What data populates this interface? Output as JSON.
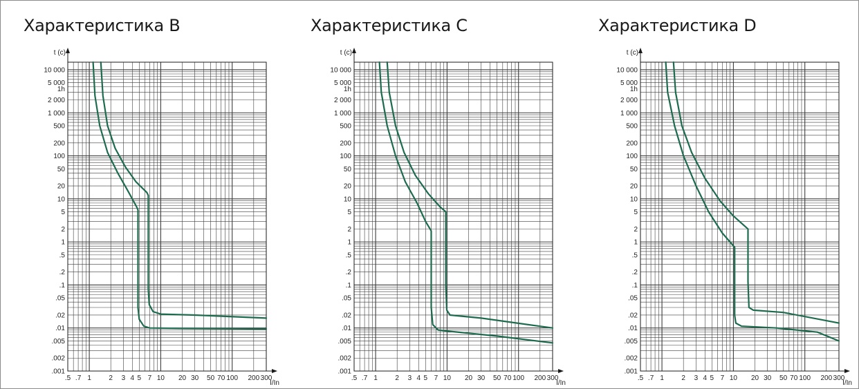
{
  "chart_data": [
    {
      "type": "line",
      "title": "Характеристика B",
      "ylabel": "t (c)",
      "xlabel": "I/In",
      "xscale": "log",
      "yscale": "log",
      "xlim": [
        0.5,
        300
      ],
      "ylim": [
        0.001,
        15000
      ],
      "grid": true,
      "yticks": [
        {
          "label": "10 000",
          "v": 10000
        },
        {
          "label": "5 000",
          "v": 5000
        },
        {
          "label": "1h",
          "v": 3600
        },
        {
          "label": "2 000",
          "v": 2000
        },
        {
          "label": "1 000",
          "v": 1000
        },
        {
          "label": "500",
          "v": 500
        },
        {
          "label": "200",
          "v": 200
        },
        {
          "label": "100",
          "v": 100
        },
        {
          "label": "50",
          "v": 50
        },
        {
          "label": "20",
          "v": 20
        },
        {
          "label": "10",
          "v": 10
        },
        {
          "label": "5",
          "v": 5
        },
        {
          "label": "2",
          "v": 2
        },
        {
          "label": "1",
          "v": 1
        },
        {
          "label": ".5",
          "v": 0.5
        },
        {
          "label": ".2",
          "v": 0.2
        },
        {
          "label": ".1",
          "v": 0.1
        },
        {
          "label": ".05",
          "v": 0.05
        },
        {
          "label": ".02",
          "v": 0.02
        },
        {
          "label": ".01",
          "v": 0.01
        },
        {
          "label": ".005",
          "v": 0.005
        },
        {
          "label": ".002",
          "v": 0.002
        },
        {
          "label": ".001",
          "v": 0.001
        }
      ],
      "xticks": [
        {
          "label": ".5",
          "v": 0.5
        },
        {
          "label": ".7",
          "v": 0.7
        },
        {
          "label": "1",
          "v": 1
        },
        {
          "label": "2",
          "v": 2
        },
        {
          "label": "3",
          "v": 3
        },
        {
          "label": "4",
          "v": 4
        },
        {
          "label": "5",
          "v": 5
        },
        {
          "label": "7",
          "v": 7
        },
        {
          "label": "10",
          "v": 10
        },
        {
          "label": "20",
          "v": 20
        },
        {
          "label": "30",
          "v": 30
        },
        {
          "label": "50",
          "v": 50
        },
        {
          "label": "70",
          "v": 70
        },
        {
          "label": "100",
          "v": 100
        },
        {
          "label": "200",
          "v": 200
        },
        {
          "label": "300",
          "v": 300
        }
      ],
      "series": [
        {
          "values": [
            [
              1.13,
              15000
            ],
            [
              1.2,
              2500
            ],
            [
              1.4,
              500
            ],
            [
              1.8,
              120
            ],
            [
              2.5,
              40
            ],
            [
              3.5,
              15
            ],
            [
              4.6,
              6.5
            ],
            [
              4.8,
              5.5
            ],
            [
              4.8,
              0.03
            ],
            [
              5.0,
              0.016
            ],
            [
              5.8,
              0.011
            ],
            [
              7,
              0.01
            ],
            [
              20,
              0.0098
            ],
            [
              300,
              0.0095
            ]
          ]
        },
        {
          "values": [
            [
              1.45,
              15000
            ],
            [
              1.55,
              2500
            ],
            [
              1.8,
              500
            ],
            [
              2.3,
              150
            ],
            [
              3.2,
              55
            ],
            [
              4.5,
              25
            ],
            [
              6.4,
              14
            ],
            [
              6.7,
              12
            ],
            [
              6.7,
              0.08
            ],
            [
              6.9,
              0.035
            ],
            [
              7.8,
              0.024
            ],
            [
              10,
              0.021
            ],
            [
              30,
              0.02
            ],
            [
              300,
              0.017
            ]
          ]
        }
      ]
    },
    {
      "type": "line",
      "title": "Характеристика C",
      "ylabel": "t (c)",
      "xlabel": "I/In",
      "xscale": "log",
      "yscale": "log",
      "xlim": [
        0.5,
        300
      ],
      "ylim": [
        0.001,
        15000
      ],
      "grid": true,
      "yticks": [
        {
          "label": "10 000",
          "v": 10000
        },
        {
          "label": "5 000",
          "v": 5000
        },
        {
          "label": "1h",
          "v": 3600
        },
        {
          "label": "2 000",
          "v": 2000
        },
        {
          "label": "1 000",
          "v": 1000
        },
        {
          "label": "500",
          "v": 500
        },
        {
          "label": "200",
          "v": 200
        },
        {
          "label": "100",
          "v": 100
        },
        {
          "label": "50",
          "v": 50
        },
        {
          "label": "20",
          "v": 20
        },
        {
          "label": "10",
          "v": 10
        },
        {
          "label": "5",
          "v": 5
        },
        {
          "label": "2",
          "v": 2
        },
        {
          "label": "1",
          "v": 1
        },
        {
          "label": ".5",
          "v": 0.5
        },
        {
          "label": ".2",
          "v": 0.2
        },
        {
          "label": ".1",
          "v": 0.1
        },
        {
          "label": ".05",
          "v": 0.05
        },
        {
          "label": ".02",
          "v": 0.02
        },
        {
          "label": ".01",
          "v": 0.01
        },
        {
          "label": ".005",
          "v": 0.005
        },
        {
          "label": ".002",
          "v": 0.002
        },
        {
          "label": ".001",
          "v": 0.001
        }
      ],
      "xticks": [
        {
          "label": ".5",
          "v": 0.5
        },
        {
          "label": ".7",
          "v": 0.7
        },
        {
          "label": "1",
          "v": 1
        },
        {
          "label": "2",
          "v": 2
        },
        {
          "label": "3",
          "v": 3
        },
        {
          "label": "4",
          "v": 4
        },
        {
          "label": "5",
          "v": 5
        },
        {
          "label": "7",
          "v": 7
        },
        {
          "label": "10",
          "v": 10
        },
        {
          "label": "20",
          "v": 20
        },
        {
          "label": "30",
          "v": 30
        },
        {
          "label": "50",
          "v": 50
        },
        {
          "label": "70",
          "v": 70
        },
        {
          "label": "100",
          "v": 100
        },
        {
          "label": "200",
          "v": 200
        },
        {
          "label": "300",
          "v": 300
        }
      ],
      "series": [
        {
          "values": [
            [
              1.13,
              15000
            ],
            [
              1.2,
              3000
            ],
            [
              1.45,
              500
            ],
            [
              1.9,
              100
            ],
            [
              2.6,
              25
            ],
            [
              3.8,
              8
            ],
            [
              5.0,
              3
            ],
            [
              6.0,
              1.8
            ],
            [
              6.0,
              0.03
            ],
            [
              6.3,
              0.012
            ],
            [
              7.5,
              0.009
            ],
            [
              10,
              0.0085
            ],
            [
              50,
              0.0065
            ],
            [
              300,
              0.0045
            ]
          ]
        },
        {
          "values": [
            [
              1.45,
              15000
            ],
            [
              1.55,
              3000
            ],
            [
              1.9,
              500
            ],
            [
              2.5,
              120
            ],
            [
              3.6,
              35
            ],
            [
              5.5,
              13
            ],
            [
              8.0,
              6.5
            ],
            [
              9.6,
              5
            ],
            [
              9.6,
              0.1
            ],
            [
              9.9,
              0.026
            ],
            [
              11,
              0.02
            ],
            [
              30,
              0.017
            ],
            [
              300,
              0.01
            ]
          ]
        }
      ]
    },
    {
      "type": "line",
      "title": "Характеристика D",
      "ylabel": "t (c)",
      "xlabel": "I/In",
      "xscale": "log",
      "yscale": "log",
      "xlim": [
        0.5,
        300
      ],
      "ylim": [
        0.001,
        15000
      ],
      "grid": true,
      "yticks": [
        {
          "label": "10 000",
          "v": 10000
        },
        {
          "label": "5 000",
          "v": 5000
        },
        {
          "label": "1h",
          "v": 3600
        },
        {
          "label": "2 000",
          "v": 2000
        },
        {
          "label": "1 000",
          "v": 1000
        },
        {
          "label": "500",
          "v": 500
        },
        {
          "label": "200",
          "v": 200
        },
        {
          "label": "100",
          "v": 100
        },
        {
          "label": "50",
          "v": 50
        },
        {
          "label": "20",
          "v": 20
        },
        {
          "label": "10",
          "v": 10
        },
        {
          "label": "5",
          "v": 5
        },
        {
          "label": "2",
          "v": 2
        },
        {
          "label": "1",
          "v": 1
        },
        {
          "label": ".5",
          "v": 0.5
        },
        {
          "label": ".2",
          "v": 0.2
        },
        {
          "label": ".1",
          "v": 0.1
        },
        {
          "label": ".05",
          "v": 0.05
        },
        {
          "label": ".02",
          "v": 0.02
        },
        {
          "label": ".01",
          "v": 0.01
        },
        {
          "label": ".005",
          "v": 0.005
        },
        {
          "label": ".002",
          "v": 0.002
        },
        {
          "label": ".001",
          "v": 0.001
        }
      ],
      "xticks": [
        {
          "label": ".5",
          "v": 0.5
        },
        {
          "label": ".7",
          "v": 0.7
        },
        {
          "label": "1",
          "v": 1
        },
        {
          "label": "2",
          "v": 2
        },
        {
          "label": "3",
          "v": 3
        },
        {
          "label": "4",
          "v": 4
        },
        {
          "label": "5",
          "v": 5
        },
        {
          "label": "7",
          "v": 7
        },
        {
          "label": "10",
          "v": 10
        },
        {
          "label": "20",
          "v": 20
        },
        {
          "label": "30",
          "v": 30
        },
        {
          "label": "50",
          "v": 50
        },
        {
          "label": "70",
          "v": 70
        },
        {
          "label": "100",
          "v": 100
        },
        {
          "label": "200",
          "v": 200
        },
        {
          "label": "300",
          "v": 300
        }
      ],
      "series": [
        {
          "values": [
            [
              1.13,
              15000
            ],
            [
              1.2,
              3000
            ],
            [
              1.5,
              500
            ],
            [
              2.0,
              100
            ],
            [
              3.0,
              20
            ],
            [
              4.5,
              5
            ],
            [
              7.0,
              1.6
            ],
            [
              10.4,
              0.75
            ],
            [
              10.4,
              0.02
            ],
            [
              10.8,
              0.013
            ],
            [
              13,
              0.011
            ],
            [
              40,
              0.01
            ],
            [
              150,
              0.008
            ],
            [
              300,
              0.005
            ]
          ]
        },
        {
          "values": [
            [
              1.45,
              15000
            ],
            [
              1.55,
              3000
            ],
            [
              1.9,
              500
            ],
            [
              2.6,
              120
            ],
            [
              4.0,
              30
            ],
            [
              6.5,
              9
            ],
            [
              10,
              4
            ],
            [
              16,
              2
            ],
            [
              16,
              0.12
            ],
            [
              16.5,
              0.03
            ],
            [
              19,
              0.026
            ],
            [
              50,
              0.023
            ],
            [
              300,
              0.013
            ]
          ]
        }
      ]
    }
  ],
  "style": {
    "curve_color": "#1d6b4e",
    "grid_color": "#3c3c3c"
  }
}
